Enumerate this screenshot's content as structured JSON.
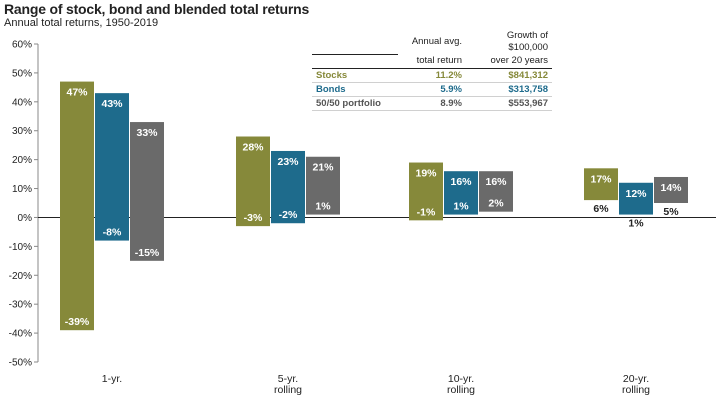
{
  "title": "Range of stock, bond and blended total returns",
  "subtitle": "Annual total returns, 1950-2019",
  "colors": {
    "stocks": "#86893a",
    "bonds": "#1e6b8c",
    "blend": "#6a6a6a",
    "legend_blend": "#555555"
  },
  "legend": {
    "header": {
      "avg_line1": "Annual avg.",
      "avg_line2": "total return",
      "growth_line1": "Growth of $100,000",
      "growth_line2": "over 20 years"
    },
    "rows": [
      {
        "name": "Stocks",
        "avg": "11.2%",
        "growth": "$841,312"
      },
      {
        "name": "Bonds",
        "avg": "5.9%",
        "growth": "$313,758"
      },
      {
        "name": "50/50 portfolio",
        "avg": "8.9%",
        "growth": "$553,967"
      }
    ]
  },
  "chart_data": {
    "type": "bar",
    "subtype": "floating-range",
    "ylim": [
      -50,
      60
    ],
    "yticks": [
      60,
      50,
      40,
      30,
      20,
      10,
      0,
      -10,
      -20,
      -30,
      -40,
      -50
    ],
    "ytick_labels": [
      "60%",
      "50%",
      "40%",
      "30%",
      "20%",
      "10%",
      "0%",
      "-10%",
      "-20%",
      "-30%",
      "-40%",
      "-50%"
    ],
    "grid": false,
    "legend_position": "top-center",
    "categories": [
      [
        "1-yr."
      ],
      [
        "5-yr.",
        "rolling"
      ],
      [
        "10-yr.",
        "rolling"
      ],
      [
        "20-yr.",
        "rolling"
      ]
    ],
    "series": [
      {
        "name": "Stocks",
        "color_key": "stocks",
        "high": [
          47,
          28,
          19,
          17
        ],
        "low": [
          -39,
          -3,
          -1,
          6
        ],
        "high_labels": [
          "47%",
          "28%",
          "19%",
          "17%"
        ],
        "low_labels": [
          "-39%",
          "-3%",
          "-1%",
          "6%"
        ]
      },
      {
        "name": "Bonds",
        "color_key": "bonds",
        "high": [
          43,
          23,
          16,
          12
        ],
        "low": [
          -8,
          -2,
          1,
          1
        ],
        "high_labels": [
          "43%",
          "23%",
          "16%",
          "12%"
        ],
        "low_labels": [
          "-8%",
          "-2%",
          "1%",
          "1%"
        ]
      },
      {
        "name": "50/50 portfolio",
        "color_key": "blend",
        "high": [
          33,
          21,
          16,
          14
        ],
        "low": [
          -15,
          1,
          2,
          5
        ],
        "high_labels": [
          "33%",
          "21%",
          "16%",
          "14%"
        ],
        "low_labels": [
          "-15%",
          "1%",
          "2%",
          "5%"
        ]
      }
    ]
  }
}
